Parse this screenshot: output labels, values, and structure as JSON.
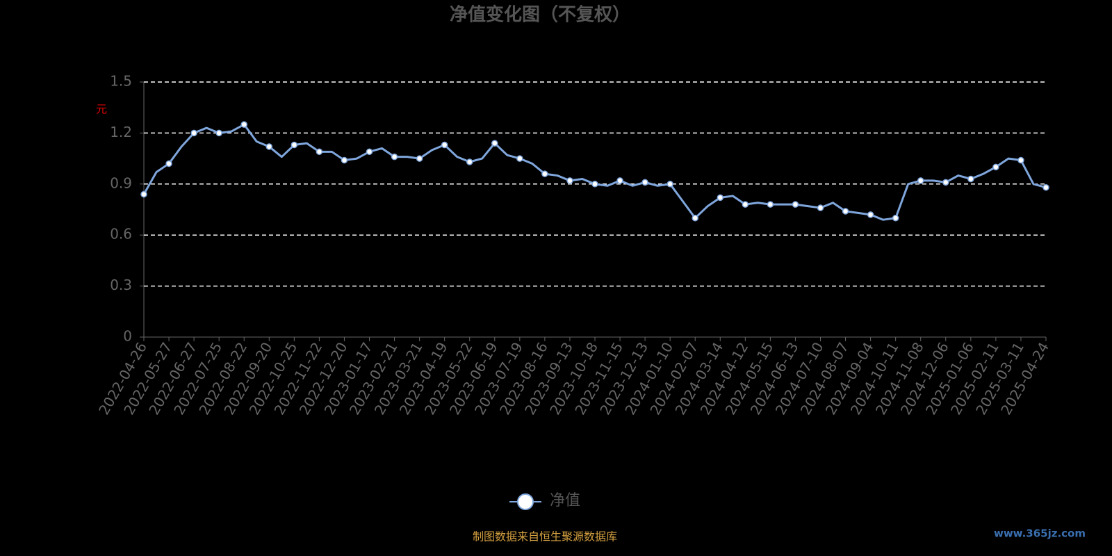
{
  "chart_data": {
    "type": "line",
    "title": "净值变化图（不复权）",
    "y_label": "元",
    "categories": [
      "2022-04-26",
      null,
      "2022-05-27",
      null,
      "2022-06-27",
      null,
      "2022-07-25",
      null,
      "2022-08-22",
      null,
      "2022-09-20",
      null,
      "2022-10-25",
      null,
      "2022-11-22",
      null,
      "2022-12-20",
      null,
      "2023-01-17",
      null,
      "2023-02-21",
      null,
      "2023-03-21",
      null,
      "2023-04-19",
      null,
      "2023-05-22",
      null,
      "2023-06-19",
      null,
      "2023-07-19",
      null,
      "2023-08-16",
      null,
      "2023-09-13",
      null,
      "2023-10-18",
      null,
      "2023-11-15",
      null,
      "2023-12-13",
      null,
      "2024-01-10",
      null,
      "2024-02-07",
      null,
      "2024-03-14",
      null,
      "2024-04-12",
      null,
      "2024-05-15",
      null,
      "2024-06-13",
      null,
      "2024-07-10",
      null,
      "2024-08-07",
      null,
      "2024-09-04",
      null,
      "2024-10-11",
      null,
      "2024-11-08",
      null,
      "2024-12-06",
      null,
      "2025-01-06",
      null,
      "2025-02-11",
      null,
      "2025-03-11",
      null,
      "2025-04-24"
    ],
    "series": [
      {
        "name": "净值",
        "color": "#7fa6dc",
        "values": [
          0.84,
          0.97,
          1.02,
          1.12,
          1.2,
          1.23,
          1.2,
          1.21,
          1.25,
          1.15,
          1.12,
          1.06,
          1.13,
          1.14,
          1.09,
          1.09,
          1.04,
          1.05,
          1.09,
          1.11,
          1.06,
          1.06,
          1.05,
          1.1,
          1.13,
          1.06,
          1.03,
          1.05,
          1.14,
          1.07,
          1.05,
          1.02,
          0.96,
          0.95,
          0.92,
          0.93,
          0.9,
          0.89,
          0.92,
          0.89,
          0.91,
          0.89,
          0.9,
          0.8,
          0.7,
          0.77,
          0.82,
          0.83,
          0.78,
          0.79,
          0.78,
          0.78,
          0.78,
          0.77,
          0.76,
          0.79,
          0.74,
          0.73,
          0.72,
          0.69,
          0.7,
          0.9,
          0.92,
          0.92,
          0.91,
          0.95,
          0.93,
          0.96,
          1.0,
          1.05,
          1.04,
          0.9,
          0.88
        ]
      }
    ],
    "ylim": [
      0,
      1.5
    ],
    "yticks": [
      0,
      0.3,
      0.6,
      0.9,
      1.2,
      1.5
    ],
    "grid": true,
    "source": "制图数据来自恒生聚源数据库",
    "watermark": "www.365jz.com"
  }
}
